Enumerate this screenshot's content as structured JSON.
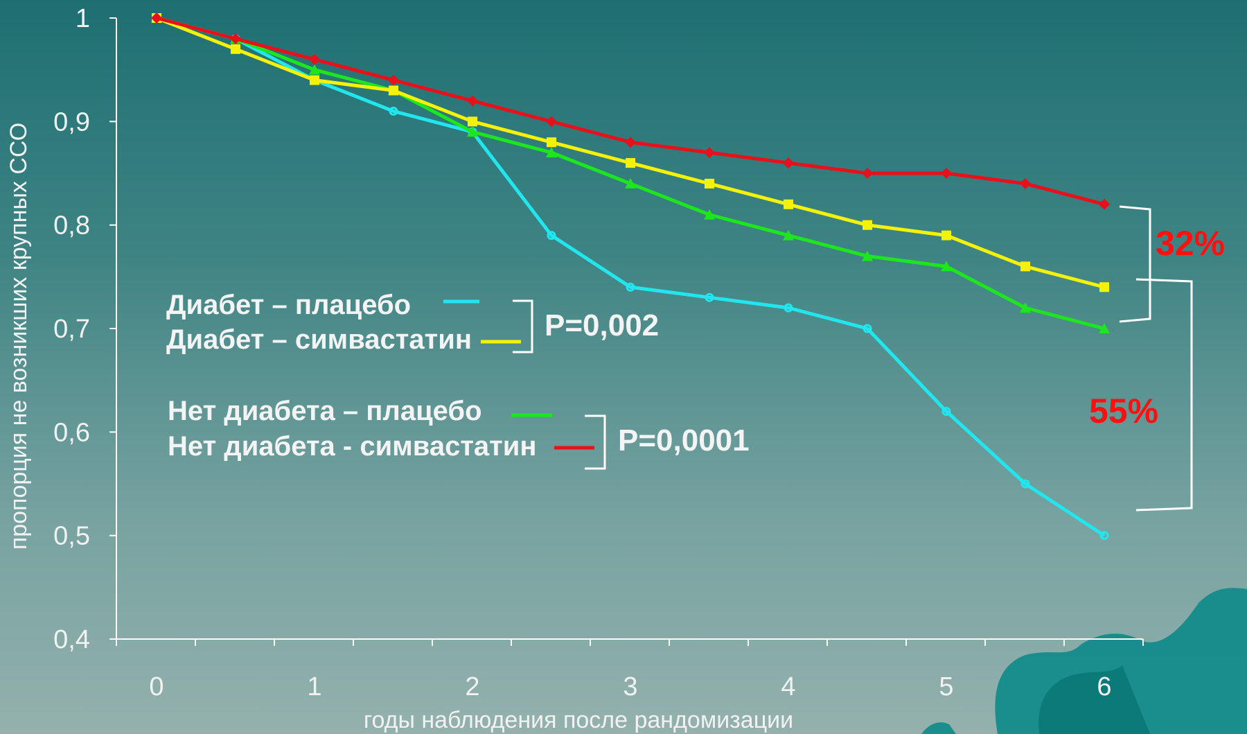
{
  "chart_data": {
    "type": "line",
    "xlabel": "годы наблюдения после рандомизации",
    "ylabel": "пропорция не возникших крупных ССО",
    "xlim": [
      0,
      6
    ],
    "ylim": [
      0.4,
      1
    ],
    "x_ticks": [
      "0",
      "1",
      "2",
      "3",
      "4",
      "5",
      "6"
    ],
    "y_ticks": [
      "1",
      "0,9",
      "0,8",
      "0,7",
      "0,6",
      "0,5",
      "0,4"
    ],
    "grid": false,
    "colors": {
      "cyan": "#22e6ee",
      "yellow": "#f5f20a",
      "green": "#1ee61e",
      "red": "#e8101a"
    },
    "x": [
      0,
      0.5,
      1,
      1.5,
      2,
      2.5,
      3,
      3.5,
      4,
      4.5,
      5,
      5.5,
      6
    ],
    "series": [
      {
        "name": "Диабет – плацебо",
        "color": "#22e6ee",
        "marker": "circle",
        "values": [
          1.0,
          0.98,
          0.94,
          0.91,
          0.89,
          0.79,
          0.74,
          0.73,
          0.72,
          0.7,
          0.62,
          0.55,
          0.5
        ]
      },
      {
        "name": "Диабет – симвастатин",
        "color": "#f5f20a",
        "marker": "square",
        "values": [
          1.0,
          0.97,
          0.94,
          0.93,
          0.9,
          0.88,
          0.86,
          0.84,
          0.82,
          0.8,
          0.79,
          0.76,
          0.74
        ]
      },
      {
        "name": "Нет диабета – плацебо",
        "color": "#1ee61e",
        "marker": "triangle",
        "values": [
          1.0,
          0.98,
          0.95,
          0.93,
          0.89,
          0.87,
          0.84,
          0.81,
          0.79,
          0.77,
          0.76,
          0.72,
          0.7
        ]
      },
      {
        "name": "Нет диабета - симвастатин",
        "color": "#e8101a",
        "marker": "diamond",
        "values": [
          1.0,
          0.98,
          0.96,
          0.94,
          0.92,
          0.9,
          0.88,
          0.87,
          0.86,
          0.85,
          0.85,
          0.84,
          0.82
        ]
      }
    ],
    "annotations": {
      "p_diabetes": "P=0,002",
      "p_no_diabetes": "P=0,0001",
      "reduction_no_diabetes": "32%",
      "reduction_diabetes": "55%"
    }
  }
}
